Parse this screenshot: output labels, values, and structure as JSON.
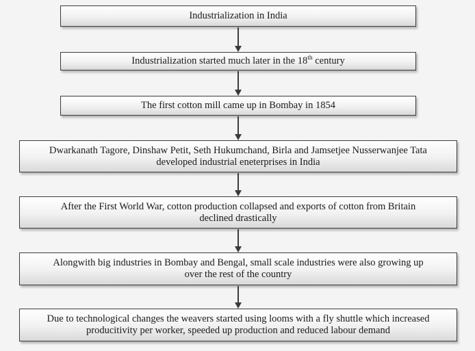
{
  "flowchart": {
    "steps": [
      {
        "text": "Industrialization in India"
      },
      {
        "text_before": "Industrialization started  much later in the 18",
        "sup": "th",
        "text_after": " century"
      },
      {
        "text": "The first cotton mill came up in Bombay in 1854"
      },
      {
        "line1": "Dwarkanath Tagore, Dinshaw Petit, Seth Hukumchand, Birla and Jamsetjee Nusserwanjee Tata",
        "line2": "developed industrial eneterprises in India"
      },
      {
        "line1": "After the First World War, cotton production collapsed and exports  of cotton  from Britain",
        "line2": "declined drastically"
      },
      {
        "line1": "Alongwith big industries in Bombay  and Bengal, small scale industries were also growing up",
        "line2": "over the rest of the country"
      },
      {
        "line1": "Due to technological changes the weavers started  using looms with a  fly shuttle which increased",
        "line2": "producitivity per worker, speeded up production and reduced  labour demand"
      }
    ]
  }
}
